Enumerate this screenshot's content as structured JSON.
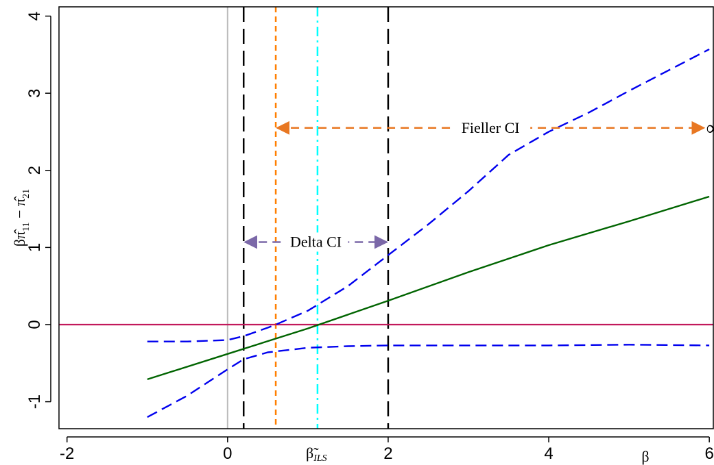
{
  "chart_data": {
    "type": "line",
    "xlabel": "β",
    "ylabel_parts": {
      "a": "β",
      "b": "π̂",
      "c": "11",
      "d": " − ",
      "e": "π̂",
      "f": "21"
    },
    "xlim": [
      -2.1,
      6.05
    ],
    "ylim": [
      -1.35,
      4.12
    ],
    "xticks": [
      "-2",
      "0",
      "2",
      "4",
      "6"
    ],
    "xtick_values": [
      -2,
      0,
      2,
      4,
      6
    ],
    "yticks": [
      "-1",
      "0",
      "1",
      "2",
      "3",
      "4"
    ],
    "ytick_values": [
      -1,
      0,
      1,
      2,
      3,
      4
    ],
    "beta_tilde_label": {
      "base": "β̃",
      "sub": "ILS"
    },
    "beta_tilde_value": 1.12,
    "series": [
      {
        "style": "solid",
        "color": "#006400",
        "x": [
          -1,
          0,
          1,
          2,
          3,
          4,
          5,
          6
        ],
        "y": [
          -0.71,
          -0.38,
          -0.05,
          0.31,
          0.68,
          1.03,
          1.34,
          1.66
        ]
      },
      {
        "style": "dashed",
        "color": "#0000ee",
        "x": [
          -1,
          -0.5,
          0,
          0.2,
          0.5,
          0.6,
          1,
          1.5,
          2,
          2.5,
          3,
          3.5,
          4,
          4.5,
          5,
          5.5,
          6
        ],
        "y": [
          -0.22,
          -0.22,
          -0.2,
          -0.15,
          -0.04,
          0.0,
          0.18,
          0.5,
          0.9,
          1.3,
          1.73,
          2.2,
          2.5,
          2.75,
          3.03,
          3.3,
          3.57
        ]
      },
      {
        "style": "dashed",
        "color": "#0000ee",
        "x": [
          -1,
          -0.5,
          0,
          0.2,
          0.5,
          1,
          1.5,
          2,
          3,
          4,
          5,
          6
        ],
        "y": [
          -1.2,
          -0.92,
          -0.58,
          -0.45,
          -0.36,
          -0.3,
          -0.28,
          -0.27,
          -0.27,
          -0.27,
          -0.26,
          -0.27
        ]
      }
    ],
    "hlines": [
      {
        "y": 0,
        "color": "#c2185b"
      }
    ],
    "vlines": [
      {
        "x": 0,
        "color": "#bbbbbb",
        "style": "solid"
      },
      {
        "x": 0.2,
        "color": "#000000",
        "style": "dashed"
      },
      {
        "x": 0.6,
        "color": "#ff7f00",
        "style": "dotted"
      },
      {
        "x": 1.12,
        "color": "#00ffff",
        "style": "dashdot"
      },
      {
        "x": 2.0,
        "color": "#000000",
        "style": "dashed"
      }
    ],
    "annotations": [
      {
        "label": "Fieller CI",
        "x1": 0.6,
        "x2": 5.95,
        "y": 2.55,
        "color": "#e87722",
        "dash": "dashed",
        "end_symbol": "∞"
      },
      {
        "label": "Delta CI",
        "x1": 0.2,
        "x2": 2.0,
        "y": 1.07,
        "color": "#7b68a8",
        "dash": "dashed",
        "end_symbol": ""
      }
    ]
  }
}
